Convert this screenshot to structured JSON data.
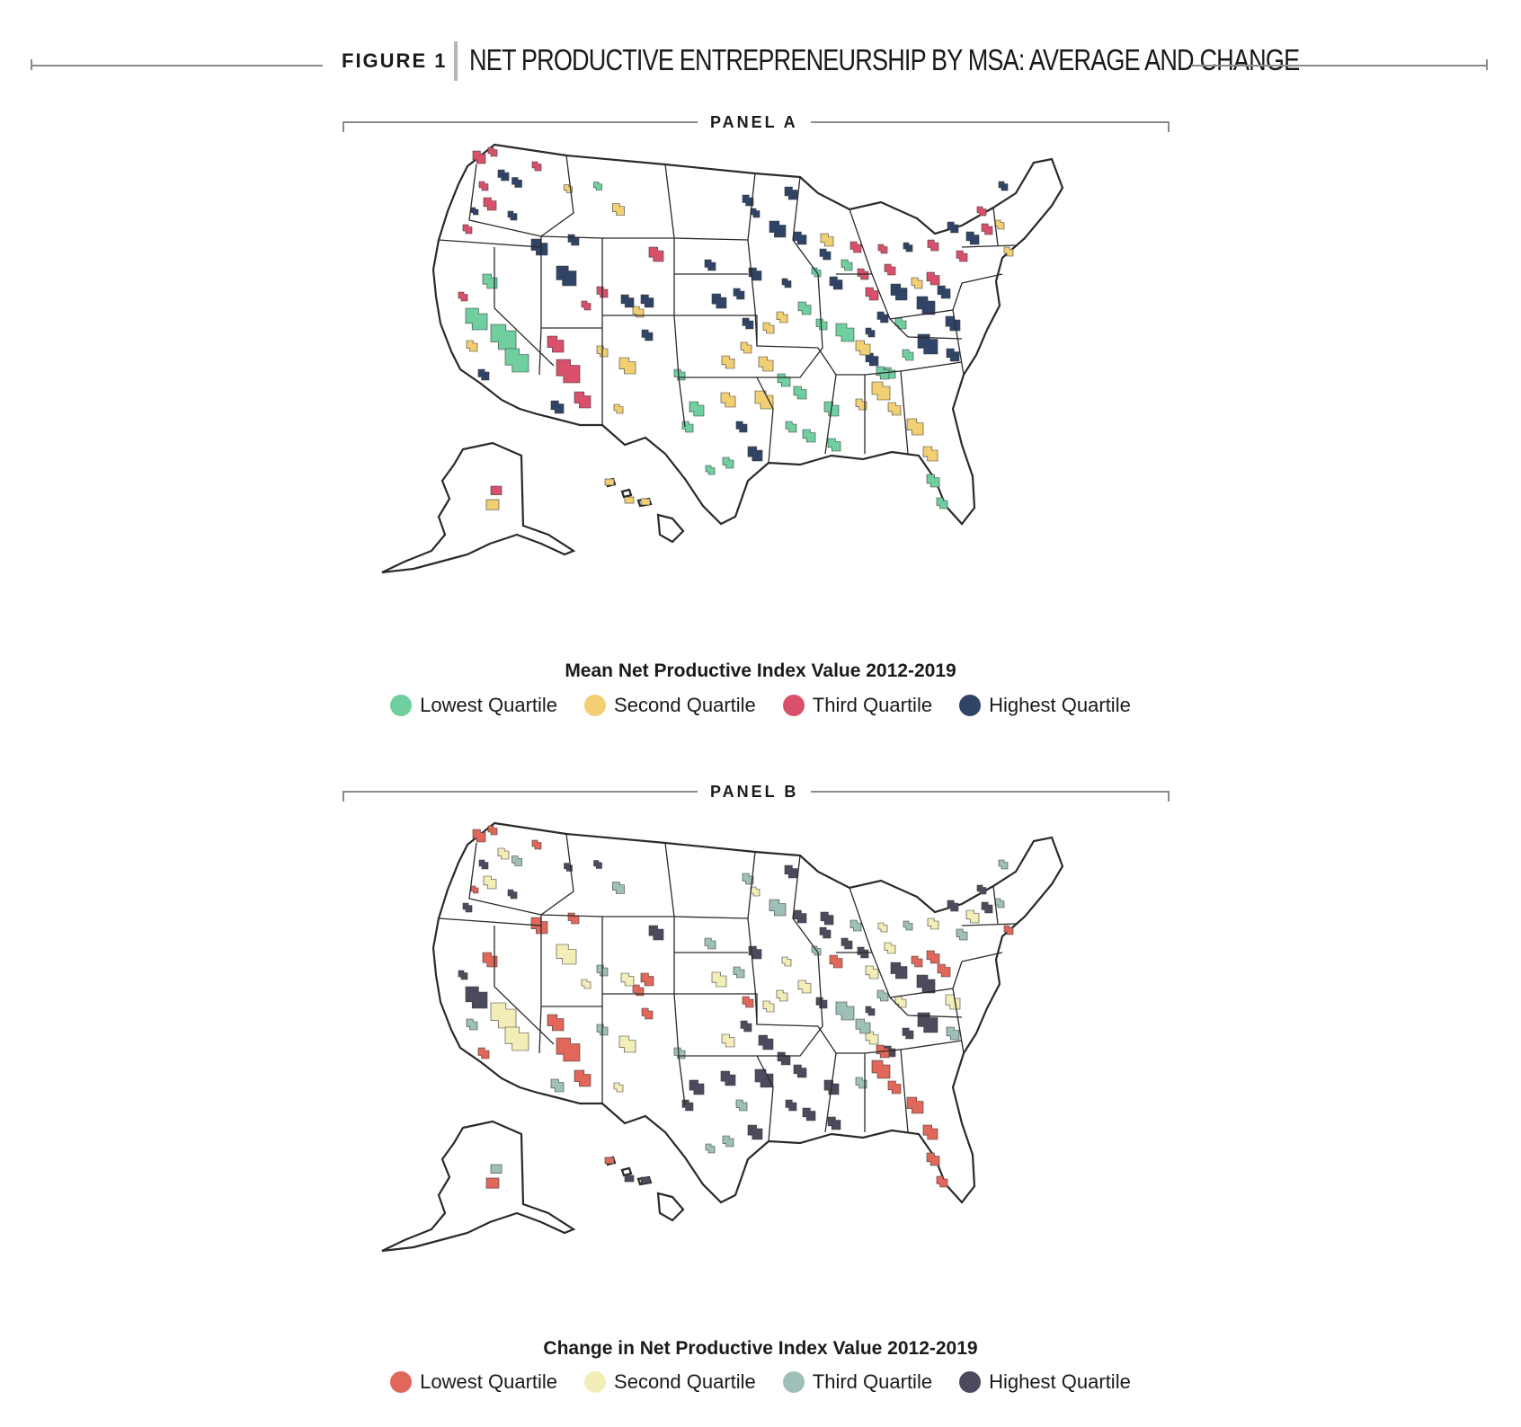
{
  "figure": {
    "label": "FIGURE 1",
    "title": "NET PRODUCTIVE ENTREPRENEURSHIP BY MSA: AVERAGE AND CHANGE"
  },
  "panels": [
    {
      "label": "PANEL A",
      "legend_title": "Mean Net Productive Index Value 2012-2019",
      "legend": [
        {
          "label": "Lowest Quartile",
          "color": "#6fcf9f"
        },
        {
          "label": "Second Quartile",
          "color": "#f2cf72"
        },
        {
          "label": "Third Quartile",
          "color": "#d9506b"
        },
        {
          "label": "Highest Quartile",
          "color": "#2f4466"
        }
      ]
    },
    {
      "label": "PANEL B",
      "legend_title": "Change in Net Productive Index Value 2012-2019",
      "legend": [
        {
          "label": "Lowest Quartile",
          "color": "#e0675a"
        },
        {
          "label": "Second Quartile",
          "color": "#f3edb7"
        },
        {
          "label": "Third Quartile",
          "color": "#9fc0b9"
        },
        {
          "label": "Highest Quartile",
          "color": "#4c4a5c"
        }
      ]
    }
  ]
}
